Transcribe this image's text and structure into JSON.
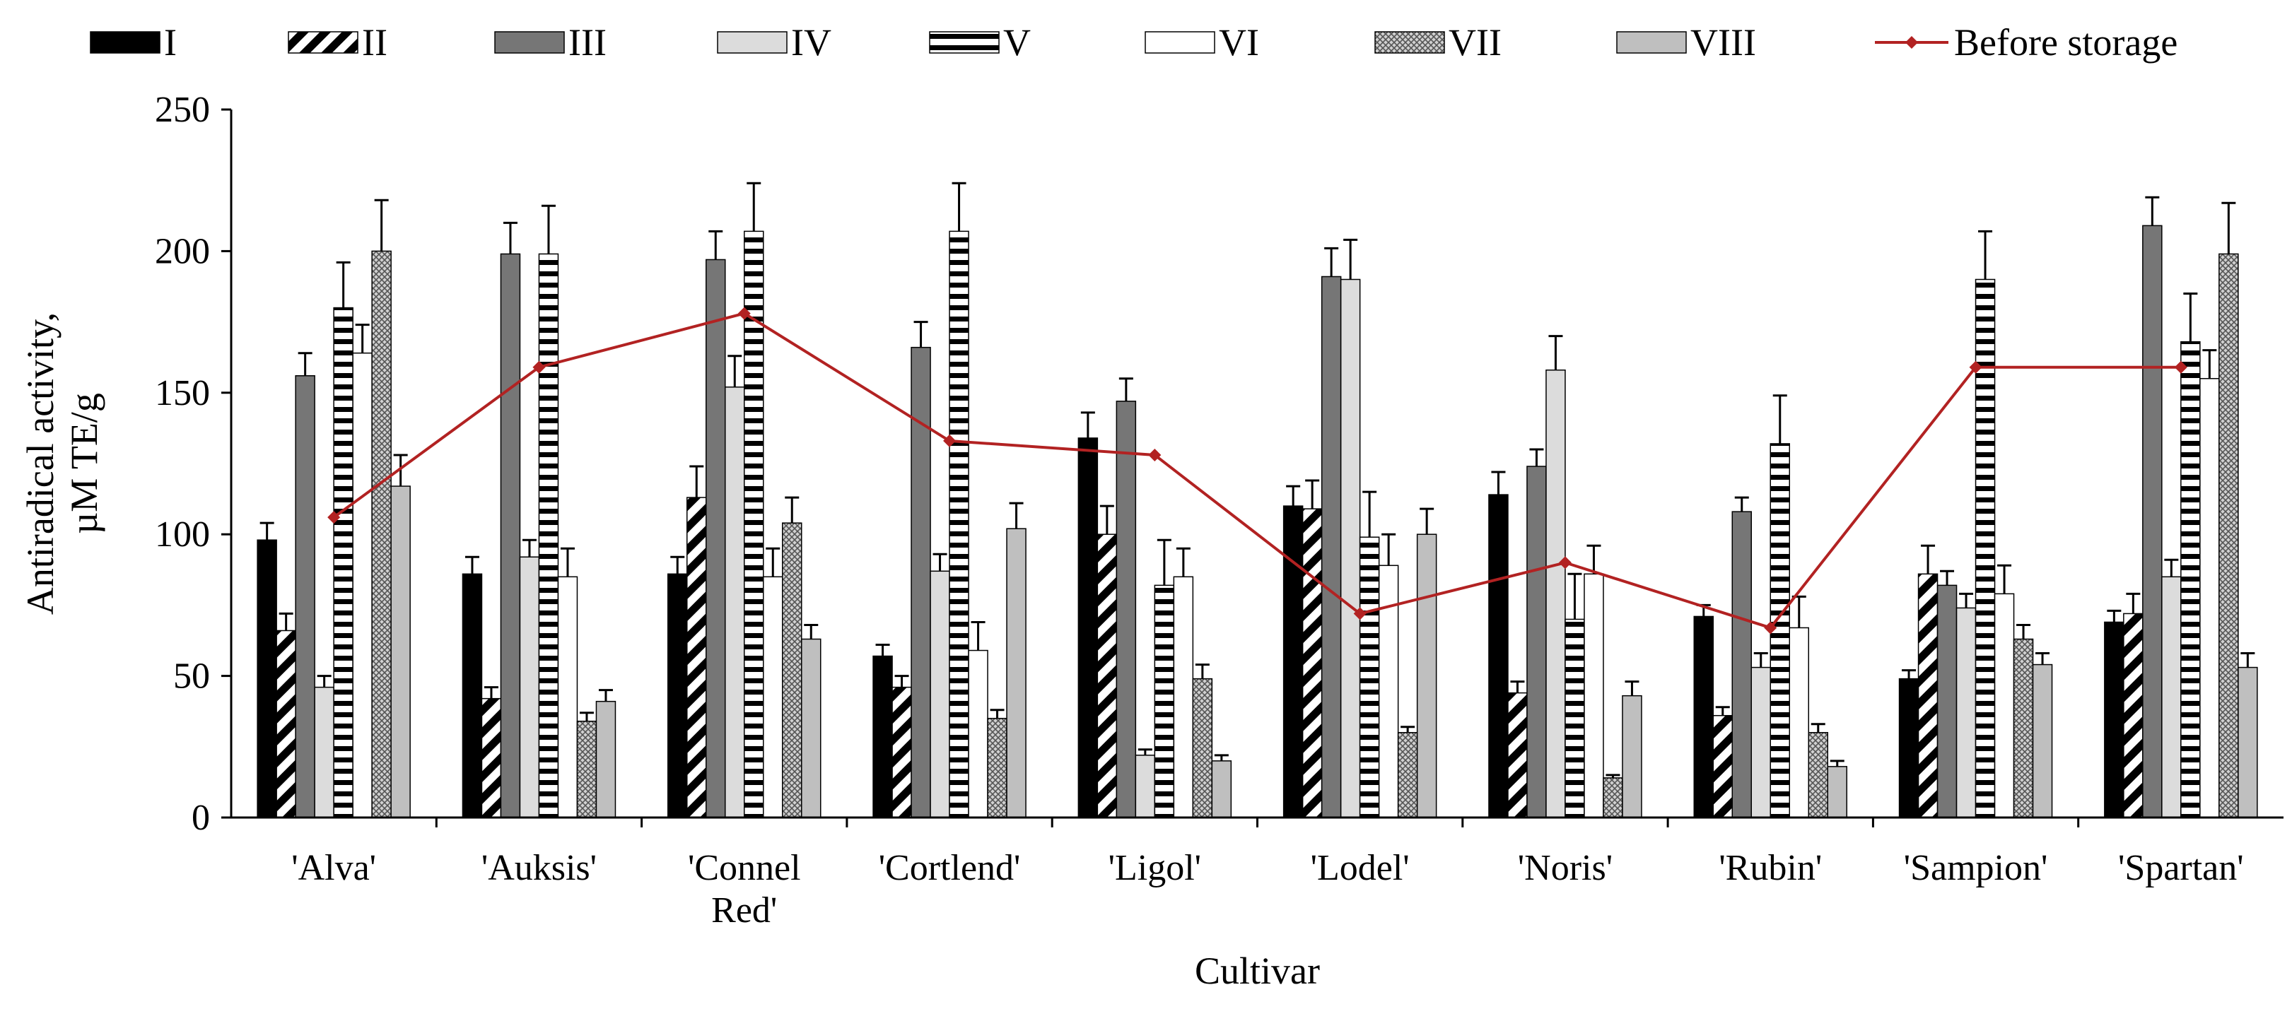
{
  "chart_data": {
    "type": "bar",
    "xlabel": "Cultivar",
    "ylabel_lines": [
      "Antiradical activity,",
      "µM TE/g"
    ],
    "ylim": [
      0,
      250
    ],
    "yticks": [
      0,
      50,
      100,
      150,
      200,
      250
    ],
    "grid": false,
    "legend_position": "top",
    "categories": [
      [
        "'Alva'"
      ],
      [
        "'Auksis'"
      ],
      [
        "'Connel",
        "Red'"
      ],
      [
        "'Cortlend'"
      ],
      [
        "'Ligol'"
      ],
      [
        "'Lodel'"
      ],
      [
        "'Noris'"
      ],
      [
        "'Rubin'"
      ],
      [
        "'Sampion'"
      ],
      [
        "'Spartan'"
      ]
    ],
    "series": [
      {
        "name": "I",
        "pattern": "solid-black",
        "values": [
          98,
          86,
          86,
          57,
          134,
          110,
          114,
          71,
          49,
          69
        ],
        "errors": [
          6,
          6,
          6,
          4,
          9,
          7,
          8,
          4,
          3,
          4
        ]
      },
      {
        "name": "II",
        "pattern": "diag",
        "values": [
          66,
          42,
          113,
          46,
          100,
          109,
          44,
          36,
          86,
          72
        ],
        "errors": [
          6,
          4,
          11,
          4,
          10,
          10,
          4,
          3,
          10,
          7
        ]
      },
      {
        "name": "III",
        "pattern": "solid-darkgray",
        "values": [
          156,
          199,
          197,
          166,
          147,
          191,
          124,
          108,
          82,
          209
        ],
        "errors": [
          8,
          11,
          10,
          9,
          8,
          10,
          6,
          5,
          5,
          10
        ]
      },
      {
        "name": "IV",
        "pattern": "solid-lightgray",
        "values": [
          46,
          92,
          152,
          87,
          22,
          190,
          158,
          53,
          74,
          85
        ],
        "errors": [
          4,
          6,
          11,
          6,
          2,
          14,
          12,
          5,
          5,
          6
        ]
      },
      {
        "name": "V",
        "pattern": "horizontal",
        "values": [
          180,
          199,
          207,
          207,
          82,
          99,
          70,
          132,
          190,
          168
        ],
        "errors": [
          16,
          17,
          17,
          17,
          16,
          16,
          16,
          17,
          17,
          17
        ]
      },
      {
        "name": "VI",
        "pattern": "solid-white",
        "values": [
          164,
          85,
          85,
          59,
          85,
          89,
          86,
          67,
          79,
          155
        ],
        "errors": [
          10,
          10,
          10,
          10,
          10,
          11,
          10,
          11,
          10,
          10
        ]
      },
      {
        "name": "VII",
        "pattern": "crosshatch",
        "values": [
          200,
          34,
          104,
          35,
          49,
          30,
          14,
          30,
          63,
          199
        ],
        "errors": [
          18,
          3,
          9,
          3,
          5,
          2,
          1,
          3,
          5,
          18
        ]
      },
      {
        "name": "VIII",
        "pattern": "solid-gray",
        "values": [
          117,
          41,
          63,
          102,
          20,
          100,
          43,
          18,
          54,
          53
        ],
        "errors": [
          11,
          4,
          5,
          9,
          2,
          9,
          5,
          2,
          4,
          5
        ]
      }
    ],
    "line_series": {
      "name": "Before storage",
      "color": "#b22222",
      "values": [
        106,
        159,
        178,
        133,
        128,
        72,
        90,
        67,
        159,
        159
      ]
    }
  }
}
